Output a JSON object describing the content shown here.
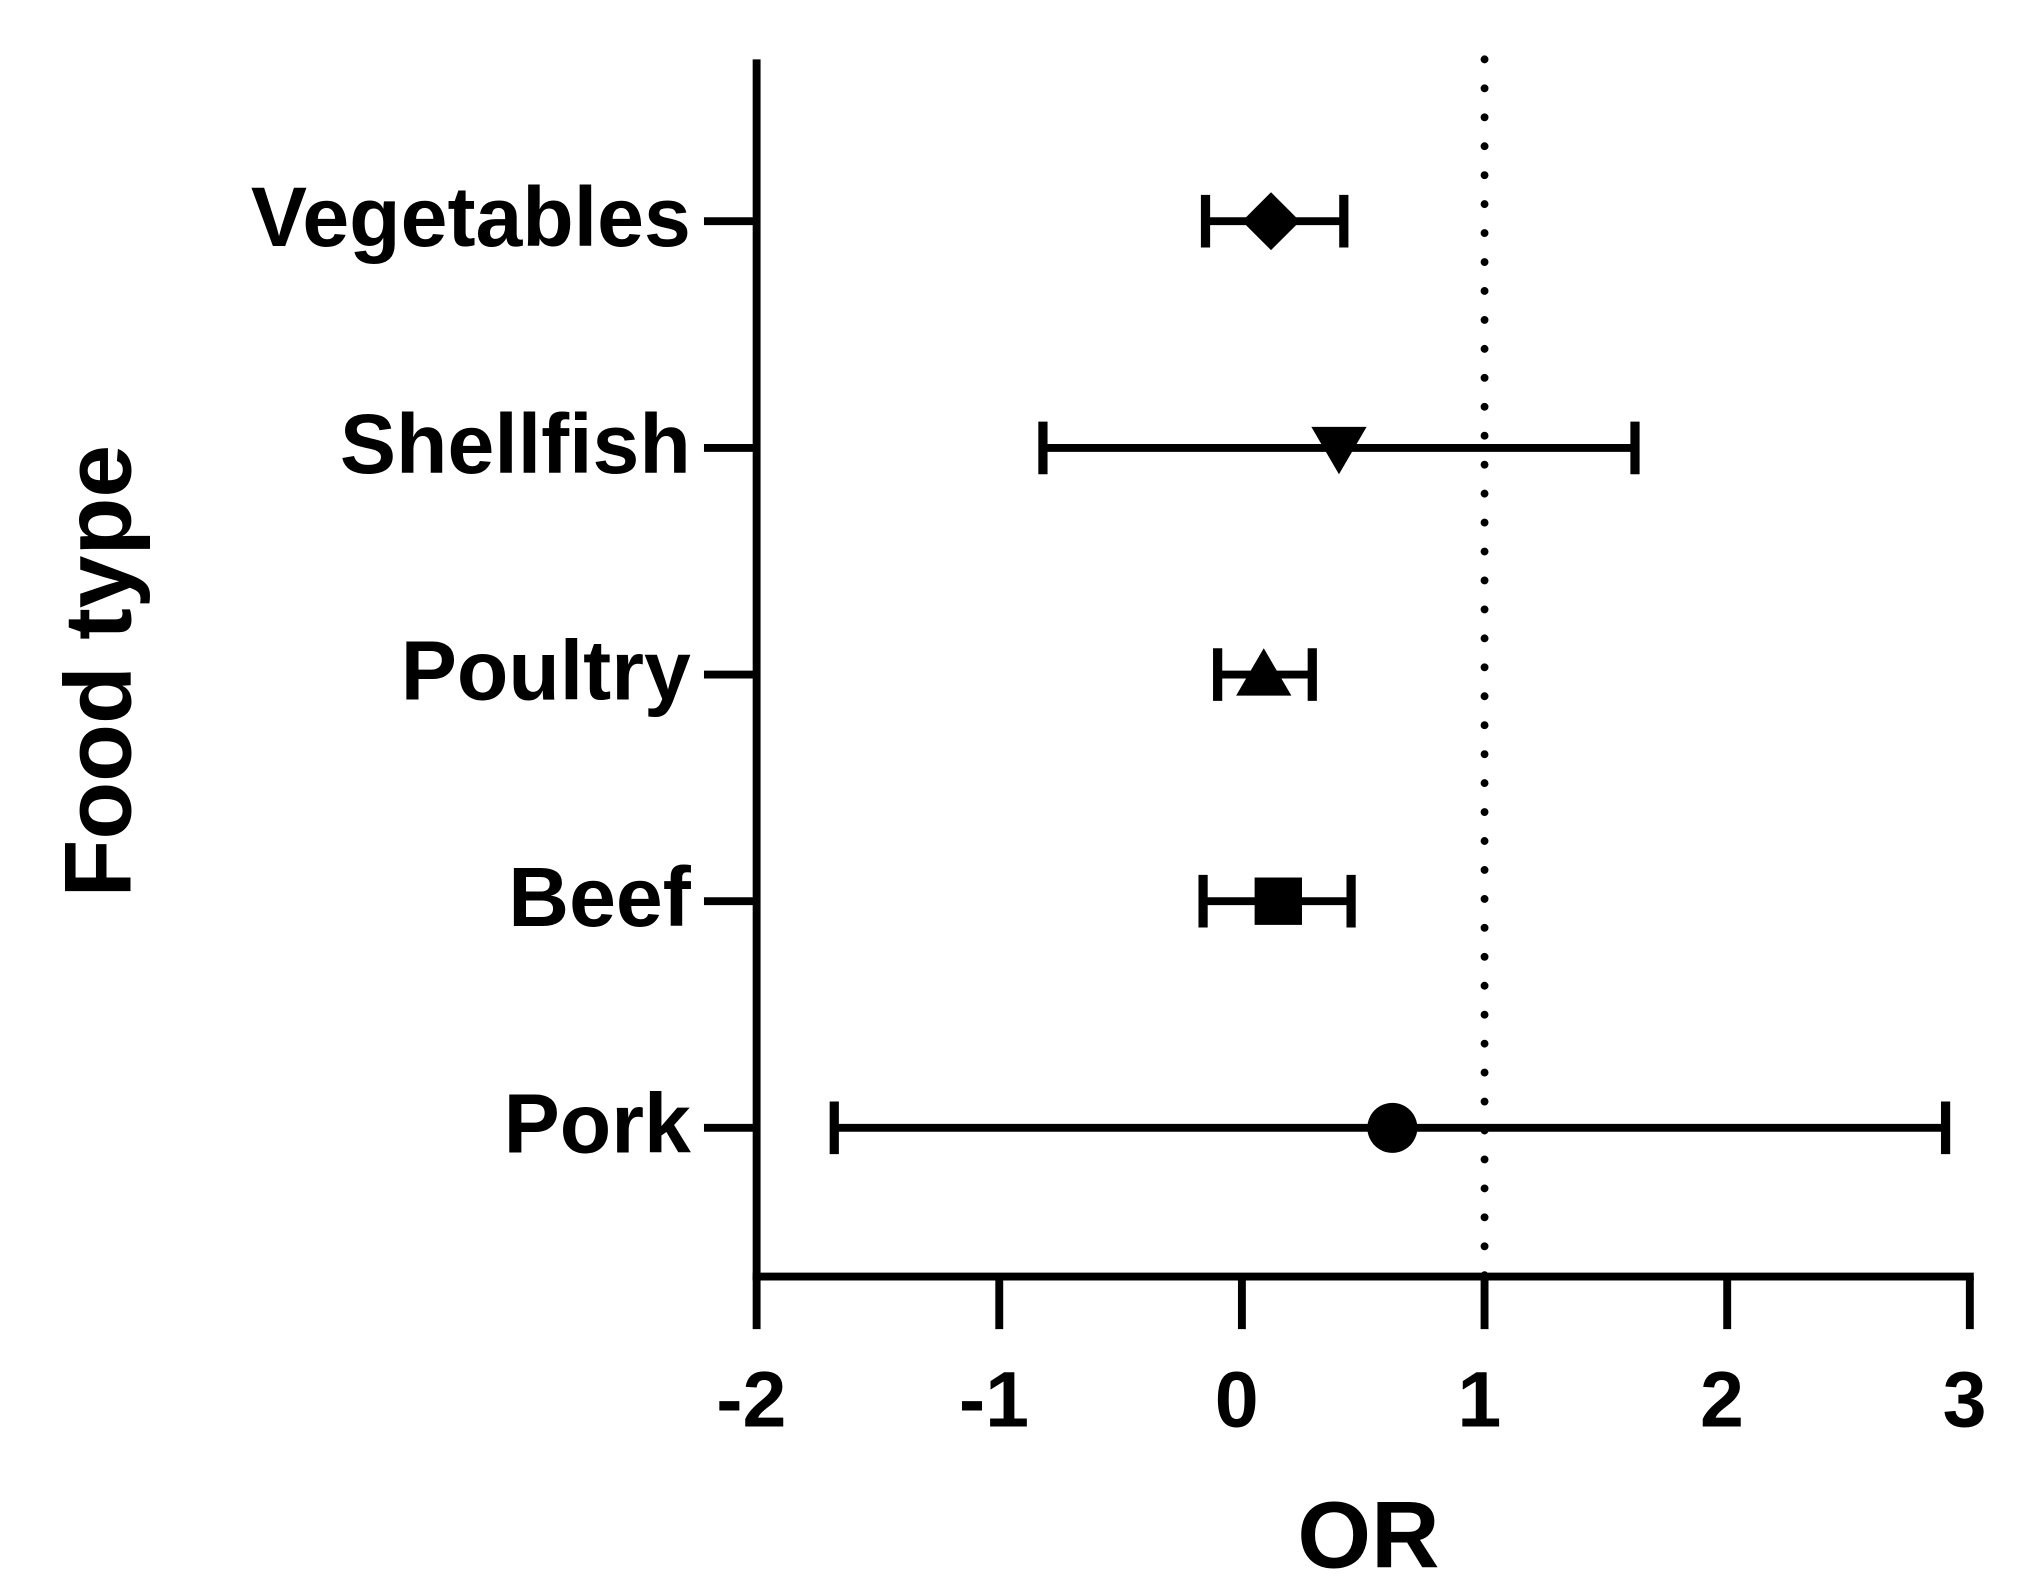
{
  "chart_data": {
    "type": "forest",
    "x_label": "OR",
    "y_label": "Food type",
    "categories": [
      "Vegetables",
      "Shellfish",
      "Poultry",
      "Beef",
      "Pork"
    ],
    "values": [
      0.12,
      0.4,
      0.09,
      0.15,
      0.62
    ],
    "ci_lower": [
      -0.15,
      -0.82,
      -0.1,
      -0.16,
      -1.68
    ],
    "ci_upper": [
      0.42,
      1.62,
      0.29,
      0.45,
      2.9
    ],
    "markers": [
      "diamond",
      "triangle-down",
      "triangle-up",
      "square",
      "circle"
    ],
    "color": "#000000",
    "reference_line": 1,
    "xlim": [
      -2,
      3
    ],
    "xticks": [
      -2,
      -1,
      0,
      1,
      2,
      3
    ]
  }
}
